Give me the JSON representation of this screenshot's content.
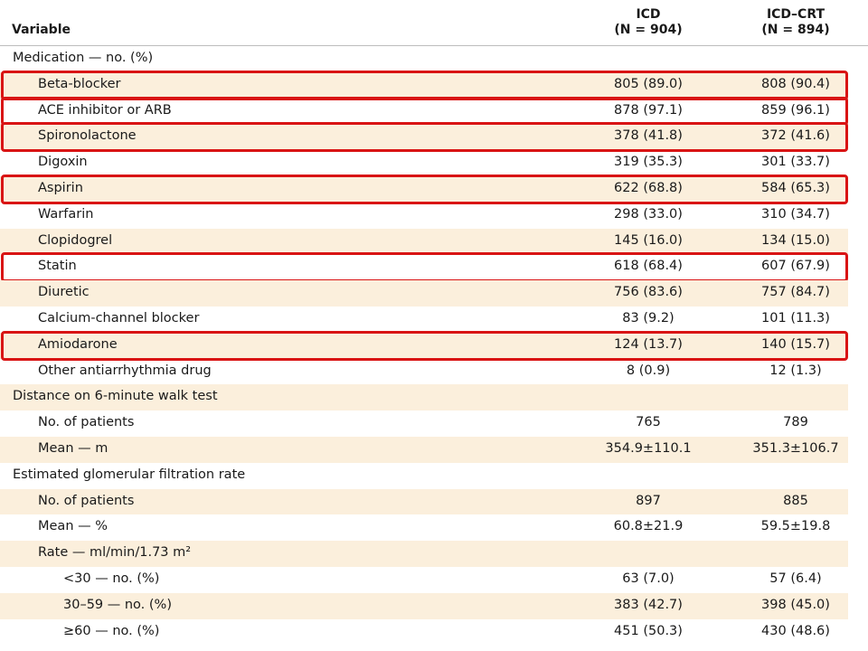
{
  "table": {
    "header": {
      "variable": "Variable",
      "icd_name": "ICD",
      "icd_n": "(N = 904)",
      "crt_name": "ICD–CRT",
      "crt_n": "(N = 894)"
    },
    "rows": [
      {
        "label": "Medication — no. (%)",
        "icd": "",
        "crt": "",
        "level": 0,
        "shade": false,
        "highlight": false
      },
      {
        "label": "Beta-blocker",
        "icd": "805 (89.0)",
        "crt": "808 (90.4)",
        "level": 1,
        "shade": true,
        "highlight": true
      },
      {
        "label": "ACE inhibitor or ARB",
        "icd": "878 (97.1)",
        "crt": "859 (96.1)",
        "level": 1,
        "shade": false,
        "highlight": true
      },
      {
        "label": "Spironolactone",
        "icd": "378 (41.8)",
        "crt": "372 (41.6)",
        "level": 1,
        "shade": true,
        "highlight": true
      },
      {
        "label": "Digoxin",
        "icd": "319 (35.3)",
        "crt": "301 (33.7)",
        "level": 1,
        "shade": false,
        "highlight": false
      },
      {
        "label": "Aspirin",
        "icd": "622 (68.8)",
        "crt": "584 (65.3)",
        "level": 1,
        "shade": true,
        "highlight": true
      },
      {
        "label": "Warfarin",
        "icd": "298 (33.0)",
        "crt": "310 (34.7)",
        "level": 1,
        "shade": false,
        "highlight": false
      },
      {
        "label": "Clopidogrel",
        "icd": "145 (16.0)",
        "crt": "134 (15.0)",
        "level": 1,
        "shade": true,
        "highlight": false
      },
      {
        "label": "Statin",
        "icd": "618 (68.4)",
        "crt": "607 (67.9)",
        "level": 1,
        "shade": false,
        "highlight": true
      },
      {
        "label": "Diuretic",
        "icd": "756 (83.6)",
        "crt": "757 (84.7)",
        "level": 1,
        "shade": true,
        "highlight": false
      },
      {
        "label": "Calcium-channel blocker",
        "icd": "83 (9.2)",
        "crt": "101 (11.3)",
        "level": 1,
        "shade": false,
        "highlight": false
      },
      {
        "label": "Amiodarone",
        "icd": "124 (13.7)",
        "crt": "140 (15.7)",
        "level": 1,
        "shade": true,
        "highlight": true
      },
      {
        "label": "Other antiarrhythmia drug",
        "icd": "8 (0.9)",
        "crt": "12 (1.3)",
        "level": 1,
        "shade": false,
        "highlight": false
      },
      {
        "label": "Distance on 6-minute walk test",
        "icd": "",
        "crt": "",
        "level": 0,
        "shade": true,
        "highlight": false
      },
      {
        "label": "No. of patients",
        "icd": "765",
        "crt": "789",
        "level": 1,
        "shade": false,
        "highlight": false
      },
      {
        "label": "Mean — m",
        "icd": "354.9±110.1",
        "crt": "351.3±106.7",
        "level": 1,
        "shade": true,
        "highlight": false
      },
      {
        "label": "Estimated glomerular filtration rate",
        "icd": "",
        "crt": "",
        "level": 0,
        "shade": false,
        "highlight": false
      },
      {
        "label": "No. of patients",
        "icd": "897",
        "crt": "885",
        "level": 1,
        "shade": true,
        "highlight": false
      },
      {
        "label": "Mean — %",
        "icd": "60.8±21.9",
        "crt": "59.5±19.8",
        "level": 1,
        "shade": false,
        "highlight": false
      },
      {
        "label": "Rate — ml/min/1.73 m²",
        "icd": "",
        "crt": "",
        "level": 1,
        "shade": true,
        "highlight": false
      },
      {
        "label": "<30 — no. (%)",
        "icd": "63 (7.0)",
        "crt": "57 (6.4)",
        "level": 2,
        "shade": false,
        "highlight": false
      },
      {
        "label": "30–59 — no. (%)",
        "icd": "383 (42.7)",
        "crt": "398 (45.0)",
        "level": 2,
        "shade": true,
        "highlight": false
      },
      {
        "label": "≥60 — no. (%)",
        "icd": "451 (50.3)",
        "crt": "430 (48.6)",
        "level": 2,
        "shade": false,
        "highlight": false
      }
    ]
  },
  "colors": {
    "row_shade": "#fbefdc",
    "highlight_border": "#d91414"
  }
}
